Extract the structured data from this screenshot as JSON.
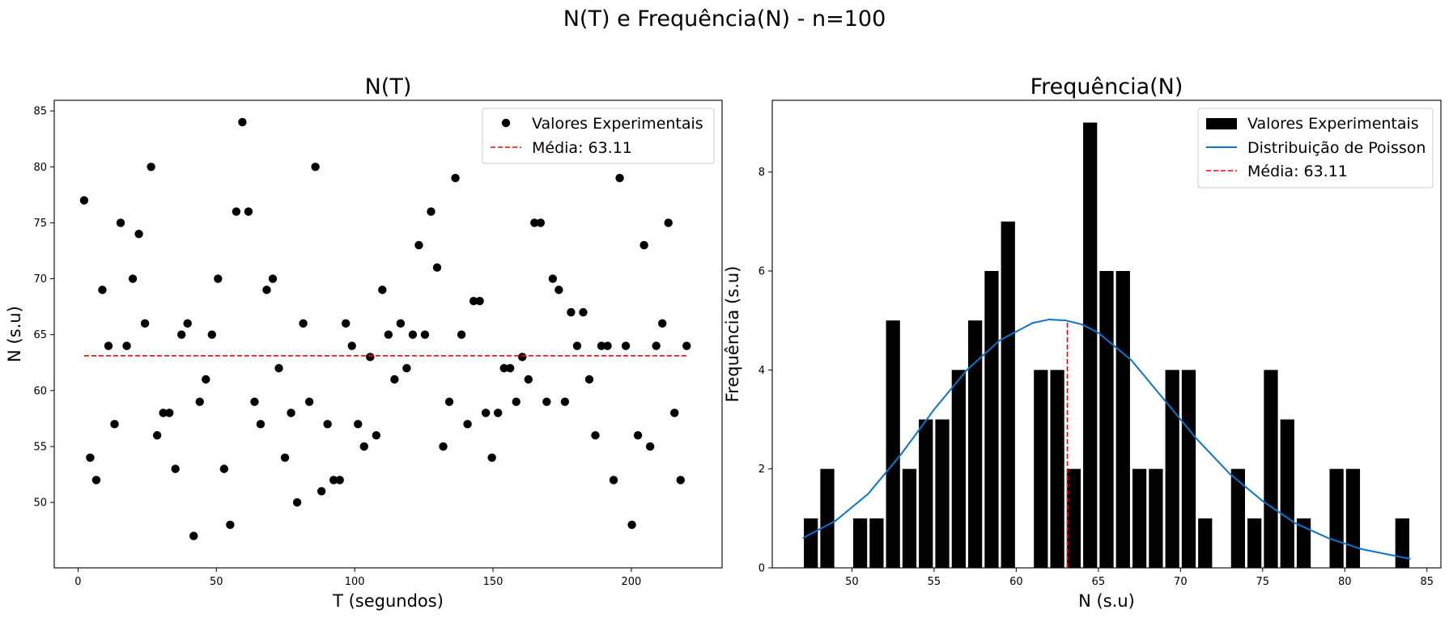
{
  "suptitle": "N(T) e Frequência(N) - n=100",
  "colors": {
    "points": "#000000",
    "bars": "#000000",
    "mean": "#ff0000",
    "poisson": "#0a74d0"
  },
  "chart_data": [
    {
      "type": "scatter",
      "title": "N(T)",
      "xlabel": "T (segundos)",
      "ylabel": "N (s.u)",
      "xlim": [
        -8.6,
        232.8
      ],
      "ylim": [
        44.15,
        85.95
      ],
      "xticks": [
        0,
        50,
        100,
        150,
        200
      ],
      "yticks": [
        50,
        55,
        60,
        65,
        70,
        75,
        80,
        85
      ],
      "legend_position": "top-right",
      "legend": [
        "Valores Experimentais",
        "Média: 63.11"
      ],
      "x": [
        2.2,
        4.4,
        6.6,
        8.8,
        11.0,
        13.2,
        15.4,
        17.6,
        19.8,
        22.0,
        24.2,
        26.4,
        28.6,
        30.8,
        33.0,
        35.2,
        37.4,
        39.6,
        41.8,
        44.0,
        46.2,
        48.4,
        50.6,
        52.8,
        55.0,
        57.2,
        59.4,
        61.6,
        63.8,
        66.0,
        68.2,
        70.4,
        72.6,
        74.8,
        77.0,
        79.2,
        81.4,
        83.6,
        85.8,
        88.0,
        90.2,
        92.4,
        94.6,
        96.8,
        99.0,
        101.2,
        103.4,
        105.6,
        107.8,
        110.0,
        112.2,
        114.4,
        116.6,
        118.8,
        121.0,
        123.2,
        125.4,
        127.6,
        129.8,
        132.0,
        134.2,
        136.4,
        138.6,
        140.8,
        143.0,
        145.2,
        147.4,
        149.6,
        151.8,
        154.0,
        156.2,
        158.4,
        160.6,
        162.8,
        165.0,
        167.2,
        169.4,
        171.6,
        173.8,
        176.0,
        178.2,
        180.4,
        182.6,
        184.8,
        187.0,
        189.2,
        191.4,
        193.6,
        195.8,
        198.0,
        200.2,
        202.4,
        204.6,
        206.8,
        209.0,
        211.2,
        213.4,
        215.6,
        217.8,
        220.0
      ],
      "y": [
        77,
        54,
        52,
        69,
        64,
        57,
        75,
        64,
        70,
        74,
        66,
        80,
        56,
        58,
        58,
        53,
        65,
        66,
        47,
        59,
        61,
        65,
        70,
        53,
        48,
        76,
        84,
        76,
        59,
        57,
        69,
        70,
        62,
        54,
        58,
        50,
        66,
        59,
        80,
        51,
        57,
        52,
        52,
        66,
        64,
        57,
        55,
        63,
        56,
        69,
        65,
        61,
        66,
        62,
        65,
        73,
        65,
        76,
        71,
        55,
        59,
        79,
        65,
        57,
        68,
        68,
        58,
        54,
        58,
        62,
        62,
        59,
        63,
        61,
        75,
        75,
        59,
        70,
        69,
        59,
        67,
        64,
        67,
        61,
        56,
        64,
        64,
        52,
        79,
        64,
        48,
        56,
        73,
        55,
        64,
        66,
        75,
        58,
        52,
        64
      ],
      "mean": 63.11,
      "mean_x_range": [
        2.2,
        220.0
      ]
    },
    {
      "type": "bar",
      "title": "Frequência(N)",
      "xlabel": "N (s.u)",
      "ylabel": "Frequência (s.u)",
      "xlim": [
        45.15,
        85.85
      ],
      "ylim": [
        0,
        9.45
      ],
      "xticks": [
        50,
        55,
        60,
        65,
        70,
        75,
        80,
        85
      ],
      "yticks": [
        0,
        2,
        4,
        6,
        8
      ],
      "legend_position": "top-right",
      "legend": [
        "Valores Experimentais",
        "Distribuição de Poisson",
        "Média: 63.11"
      ],
      "bar_width": 0.85,
      "bins": [
        47.5,
        48.5,
        50.5,
        51.5,
        52.5,
        53.5,
        54.5,
        55.5,
        56.5,
        57.5,
        58.5,
        59.5,
        61.5,
        62.5,
        63.5,
        64.5,
        65.5,
        66.5,
        67.5,
        68.5,
        69.5,
        70.5,
        71.5,
        73.5,
        74.5,
        75.5,
        76.5,
        77.5,
        79.5,
        80.5,
        83.5
      ],
      "values": [
        1,
        2,
        1,
        1,
        5,
        2,
        3,
        3,
        4,
        5,
        6,
        7,
        4,
        4,
        2,
        9,
        6,
        6,
        2,
        2,
        4,
        4,
        1,
        2,
        1,
        4,
        3,
        1,
        2,
        2,
        1
      ],
      "mean": 63.11,
      "mean_height": 5.0,
      "poisson": {
        "x": [
          47,
          49,
          51,
          53,
          55,
          57,
          59,
          61,
          62,
          63,
          64,
          65,
          67,
          69,
          71,
          73,
          75,
          77,
          79,
          81,
          84
        ],
        "y": [
          0.6,
          0.95,
          1.5,
          2.3,
          3.2,
          4.0,
          4.6,
          4.95,
          5.02,
          5.0,
          4.92,
          4.75,
          4.2,
          3.4,
          2.6,
          1.9,
          1.35,
          0.9,
          0.6,
          0.38,
          0.18
        ]
      }
    }
  ]
}
